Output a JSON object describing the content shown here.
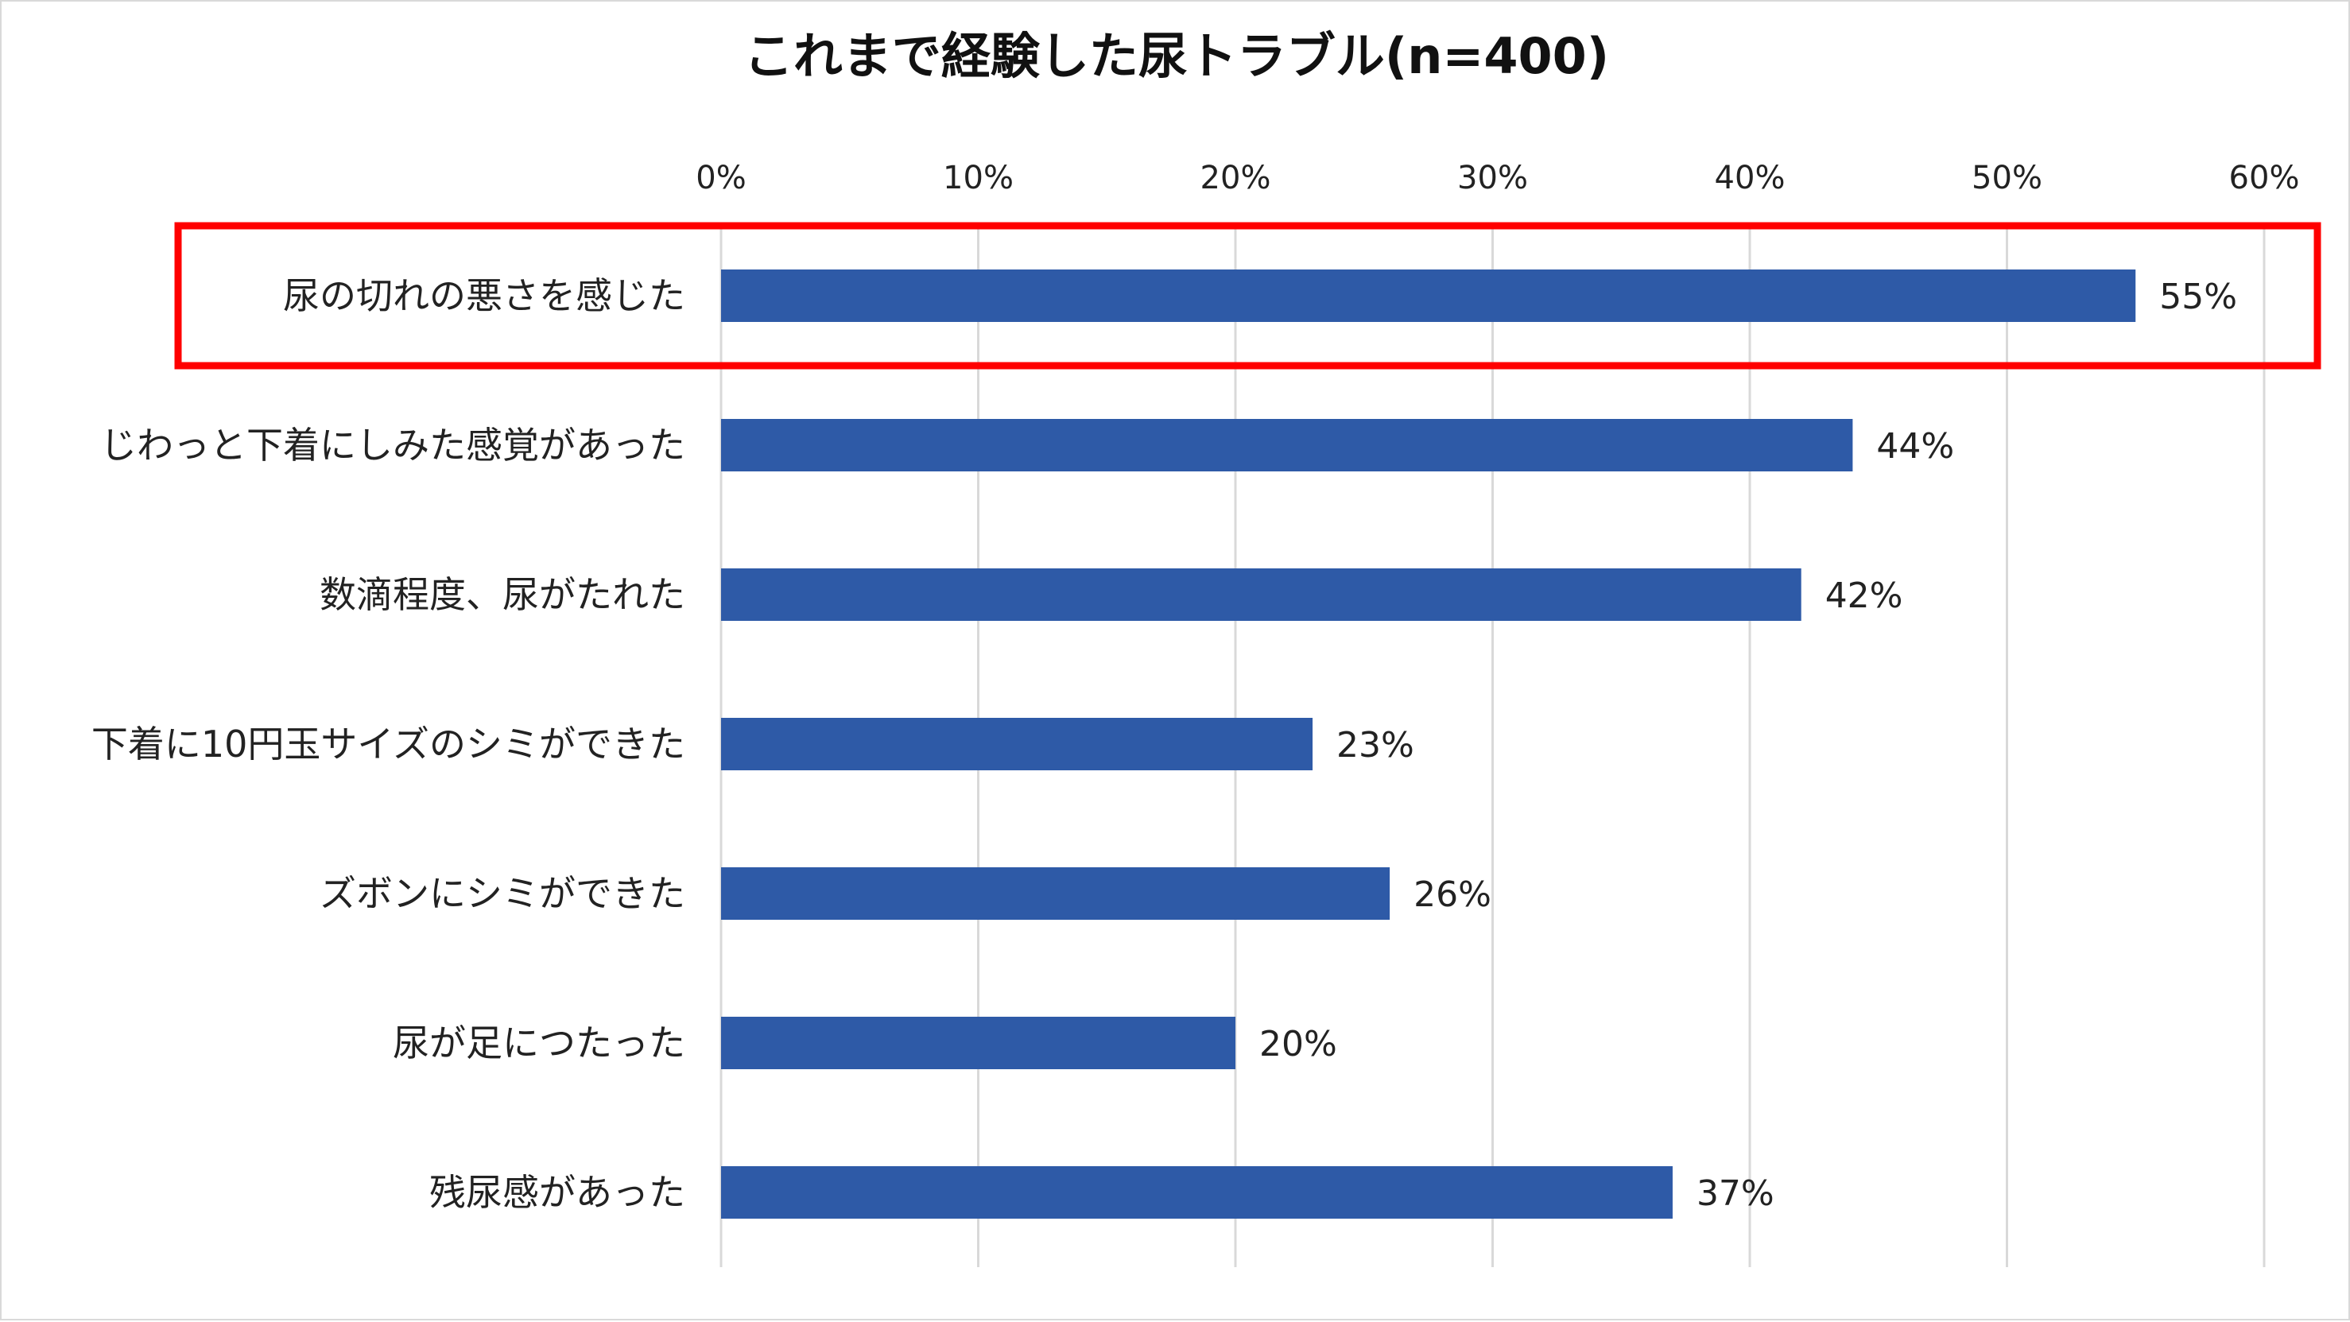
{
  "chart_data": {
    "type": "bar",
    "orientation": "horizontal",
    "title": "これまで経験した尿トラブル(n=400)",
    "xlabel": "",
    "ylabel": "",
    "xlim": [
      0,
      60
    ],
    "tick_values": [
      0,
      10,
      20,
      30,
      40,
      50,
      60
    ],
    "tick_labels": [
      "0%",
      "10%",
      "20%",
      "30%",
      "40%",
      "50%",
      "60%"
    ],
    "axis_position": "top",
    "grid": true,
    "categories": [
      "尿の切れの悪さを感じた",
      "じわっと下着にしみた感覚があった",
      "数滴程度、尿がたれた",
      "下着に10円玉サイズのシミができた",
      "ズボンにシミができた",
      "尿が足につたった",
      "残尿感があった"
    ],
    "values": [
      55,
      44,
      42,
      23,
      26,
      20,
      37
    ],
    "value_labels": [
      "55%",
      "44%",
      "42%",
      "23%",
      "26%",
      "20%",
      "37%"
    ],
    "highlighted_category": "尿の切れの悪さを感じた",
    "colors": {
      "bar": "#2e5aa7",
      "highlight_box": "#ff0000",
      "grid": "#d9d9d9"
    }
  }
}
